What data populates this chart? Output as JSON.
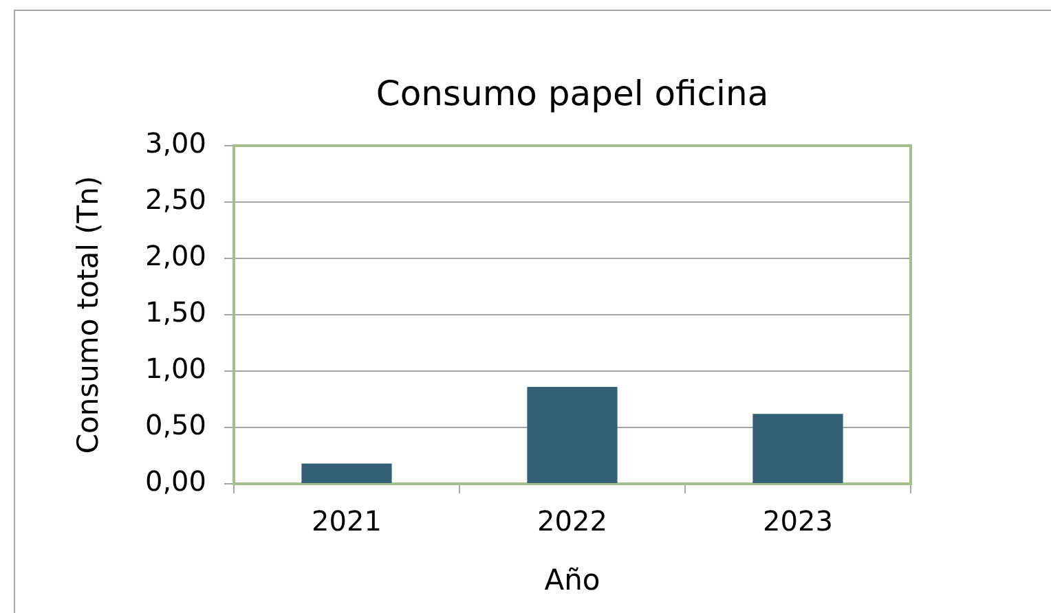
{
  "chart_data": {
    "type": "bar",
    "title": "Consumo papel oficina",
    "xlabel": "Año",
    "ylabel": "Consumo total (Tn)",
    "categories": [
      "2021",
      "2022",
      "2023"
    ],
    "values": [
      0.18,
      0.86,
      0.62
    ],
    "color": "#336075",
    "ylim": [
      0,
      3
    ],
    "yticks": [
      {
        "value": 0,
        "label": "0,00"
      },
      {
        "value": 0.5,
        "label": "0,50"
      },
      {
        "value": 1,
        "label": "1,00"
      },
      {
        "value": 1.5,
        "label": "1,50"
      },
      {
        "value": 2,
        "label": "2,00"
      },
      {
        "value": 2.5,
        "label": "2,50"
      },
      {
        "value": 3,
        "label": "3,00"
      }
    ],
    "grid": "y"
  }
}
